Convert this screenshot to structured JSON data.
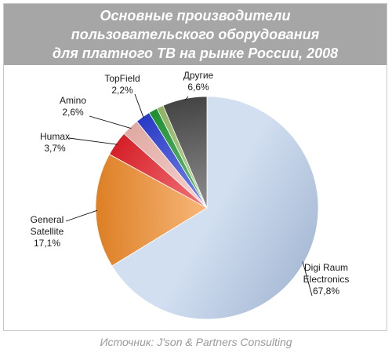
{
  "chart_data": {
    "type": "pie",
    "title_lines": [
      "Основные производители",
      "пользовательского оборудования",
      "для платного ТВ на рынке России, 2008"
    ],
    "source": "Источник: J'son & Partners Consulting",
    "legend": "none",
    "slices": [
      {
        "label_lines": [
          "Digi Raum",
          "Electronics"
        ],
        "value_label": "67,8%",
        "value": 67.8,
        "color": "#b9cdea"
      },
      {
        "label_lines": [
          "General",
          "Satellite"
        ],
        "value_label": "17,1%",
        "value": 17.1,
        "color": "#f08a28"
      },
      {
        "label_lines": [
          "Humax"
        ],
        "value_label": "3,7%",
        "value": 3.7,
        "color": "#e8222a"
      },
      {
        "label_lines": [
          "Amino"
        ],
        "value_label": "2,6%",
        "value": 2.6,
        "color": "#f2b8b0"
      },
      {
        "label_lines": [
          "TopField"
        ],
        "value_label": "2,2%",
        "value": 2.2,
        "color": "#2c3fd6"
      },
      {
        "label_lines": [
          "Другие"
        ],
        "value_label": "6,6%",
        "value": 6.6,
        "color": "#4a4a4a"
      }
    ],
    "unlabeled_slices": [
      {
        "value": 1.3,
        "color": "#1f9a35"
      },
      {
        "value": 1.0,
        "color": "#9cc06a"
      }
    ]
  }
}
